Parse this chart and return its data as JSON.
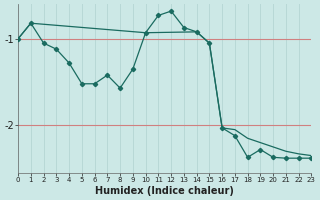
{
  "xlabel": "Humidex (Indice chaleur)",
  "bg_color": "#cce8e6",
  "line_color": "#1a6b60",
  "grid_v_color": "#b8d8d6",
  "grid_h_color": "#d08080",
  "xlim": [
    0,
    23
  ],
  "ylim": [
    -2.55,
    -0.6
  ],
  "yticks": [
    -2,
    -1
  ],
  "xticks": [
    0,
    1,
    2,
    3,
    4,
    5,
    6,
    7,
    8,
    9,
    10,
    11,
    12,
    13,
    14,
    15,
    16,
    17,
    18,
    19,
    20,
    21,
    22,
    23
  ],
  "jagged_x": [
    0,
    1,
    2,
    3,
    4,
    5,
    6,
    7,
    8,
    9,
    10,
    11,
    12,
    13,
    14,
    15,
    16,
    17,
    18,
    19,
    20,
    21,
    22,
    23
  ],
  "jagged_y": [
    -1.0,
    -0.82,
    -1.05,
    -1.12,
    -1.28,
    -1.52,
    -1.52,
    -1.42,
    -1.57,
    -1.35,
    -0.93,
    -0.73,
    -0.68,
    -0.87,
    -0.92,
    -1.05,
    -2.03,
    -2.12,
    -2.37,
    -2.28,
    -2.37,
    -2.38,
    -2.38,
    -2.38
  ],
  "trend_x": [
    0,
    1,
    10,
    14,
    15,
    16,
    17,
    18,
    19,
    20,
    21,
    22,
    23
  ],
  "trend_y": [
    -1.0,
    -0.82,
    -0.93,
    -0.92,
    -1.05,
    -2.03,
    -2.05,
    -2.15,
    -2.2,
    -2.25,
    -2.3,
    -2.33,
    -2.35
  ]
}
